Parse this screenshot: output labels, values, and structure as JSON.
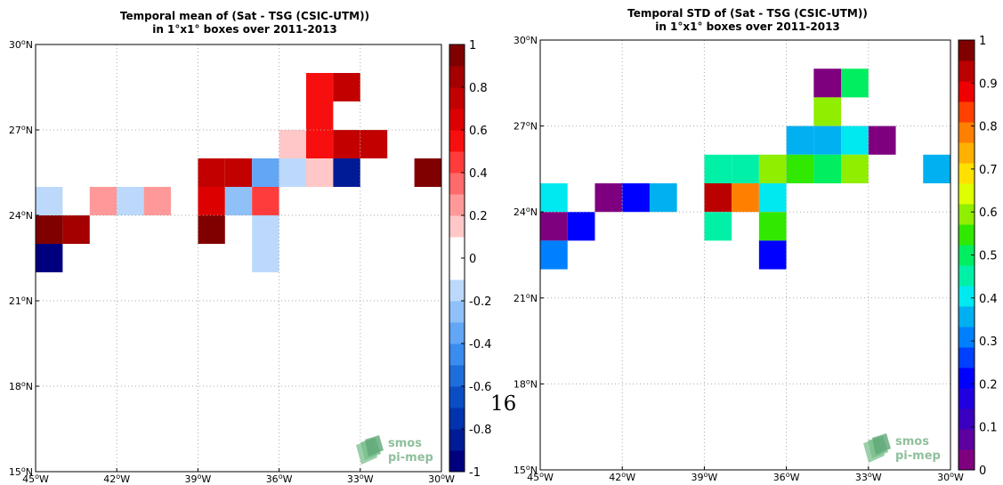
{
  "page_number": "16",
  "logo": {
    "line1": "smos",
    "line2": "pi-mep"
  },
  "chart_data": [
    {
      "type": "heatmap",
      "title_line1": "Temporal mean of (Sat - TSG (CSIC-UTM))",
      "title_line2": "in 1°x1° boxes over 2011-2013",
      "xlim": [
        -45,
        -30
      ],
      "ylim": [
        15,
        30
      ],
      "xticks": [
        {
          "value": -45,
          "label": "45°W"
        },
        {
          "value": -42,
          "label": "42°W"
        },
        {
          "value": -39,
          "label": "39°W"
        },
        {
          "value": -36,
          "label": "36°W"
        },
        {
          "value": -33,
          "label": "33°W"
        },
        {
          "value": -30,
          "label": "30°W"
        }
      ],
      "yticks": [
        {
          "value": 15,
          "label": "15°N"
        },
        {
          "value": 18,
          "label": "18°N"
        },
        {
          "value": 21,
          "label": "21°N"
        },
        {
          "value": 24,
          "label": "24°N"
        },
        {
          "value": 27,
          "label": "27°N"
        },
        {
          "value": 30,
          "label": "30°N"
        }
      ],
      "grid": true,
      "colorbar": {
        "min": -1,
        "max": 1,
        "colors": [
          "#00007f",
          "#001b96",
          "#0033ad",
          "#0b4ec4",
          "#1f6ddb",
          "#3a8cee",
          "#62a6f5",
          "#8fc0f8",
          "#bcd9fb",
          "#ffffff",
          "#ffffff",
          "#ffc7c7",
          "#ff9999",
          "#ff6a6a",
          "#ff3c3c",
          "#f70f0f",
          "#dd0000",
          "#c20000",
          "#a40000",
          "#800000"
        ],
        "ticks": [
          {
            "value": 1,
            "label": "1"
          },
          {
            "value": 0.8,
            "label": "0.8"
          },
          {
            "value": 0.6,
            "label": "0.6"
          },
          {
            "value": 0.4,
            "label": "0.4"
          },
          {
            "value": 0.2,
            "label": "0.2"
          },
          {
            "value": 0,
            "label": "0"
          },
          {
            "value": -0.2,
            "label": "-0.2"
          },
          {
            "value": -0.4,
            "label": "-0.4"
          },
          {
            "value": -0.6,
            "label": "-0.6"
          },
          {
            "value": -0.8,
            "label": "-0.8"
          },
          {
            "value": -1,
            "label": "-1"
          }
        ]
      },
      "cells": [
        {
          "lon": -35,
          "lat": 28,
          "value": 0.55
        },
        {
          "lon": -34,
          "lat": 28,
          "value": 0.7
        },
        {
          "lon": -35,
          "lat": 27,
          "value": 0.55
        },
        {
          "lon": -36,
          "lat": 26,
          "value": 0.15
        },
        {
          "lon": -35,
          "lat": 26,
          "value": 0.5
        },
        {
          "lon": -34,
          "lat": 26,
          "value": 0.7
        },
        {
          "lon": -33,
          "lat": 26,
          "value": 0.7
        },
        {
          "lon": -39,
          "lat": 25,
          "value": 0.75
        },
        {
          "lon": -38,
          "lat": 25,
          "value": 0.7
        },
        {
          "lon": -37,
          "lat": 25,
          "value": -0.35
        },
        {
          "lon": -36,
          "lat": 25,
          "value": -0.15
        },
        {
          "lon": -35,
          "lat": 25,
          "value": 0.15
        },
        {
          "lon": -34,
          "lat": 25,
          "value": -0.85
        },
        {
          "lon": -31,
          "lat": 25,
          "value": 0.95
        },
        {
          "lon": -45,
          "lat": 24,
          "value": -0.15
        },
        {
          "lon": -43,
          "lat": 24,
          "value": 0.25
        },
        {
          "lon": -42,
          "lat": 24,
          "value": -0.15
        },
        {
          "lon": -41,
          "lat": 24,
          "value": 0.25
        },
        {
          "lon": -39,
          "lat": 24,
          "value": 0.65
        },
        {
          "lon": -38,
          "lat": 24,
          "value": -0.25
        },
        {
          "lon": -37,
          "lat": 24,
          "value": 0.45
        },
        {
          "lon": -45,
          "lat": 23,
          "value": 0.95
        },
        {
          "lon": -44,
          "lat": 23,
          "value": 0.8
        },
        {
          "lon": -39,
          "lat": 23,
          "value": 0.95
        },
        {
          "lon": -37,
          "lat": 23,
          "value": -0.15
        },
        {
          "lon": -45,
          "lat": 22,
          "value": -0.95
        },
        {
          "lon": -37,
          "lat": 22,
          "value": -0.15
        }
      ]
    },
    {
      "type": "heatmap",
      "title_line1": "Temporal STD of (Sat - TSG (CSIC-UTM))",
      "title_line2": "in 1°x1° boxes over 2011-2013",
      "xlim": [
        -45,
        -30
      ],
      "ylim": [
        15,
        30
      ],
      "xticks": [
        {
          "value": -45,
          "label": "45°W"
        },
        {
          "value": -42,
          "label": "42°W"
        },
        {
          "value": -39,
          "label": "39°W"
        },
        {
          "value": -36,
          "label": "36°W"
        },
        {
          "value": -33,
          "label": "33°W"
        },
        {
          "value": -30,
          "label": "30°W"
        }
      ],
      "yticks": [
        {
          "value": 15,
          "label": "15°N"
        },
        {
          "value": 18,
          "label": "18°N"
        },
        {
          "value": 21,
          "label": "21°N"
        },
        {
          "value": 24,
          "label": "24°N"
        },
        {
          "value": 27,
          "label": "27°N"
        },
        {
          "value": 30,
          "label": "30°N"
        }
      ],
      "grid": true,
      "colorbar": {
        "min": 0,
        "max": 1,
        "colors": [
          "#7f007f",
          "#5c009f",
          "#3a00bf",
          "#1f00df",
          "#0000ff",
          "#0040ff",
          "#0080ff",
          "#00b0f0",
          "#00e8f0",
          "#00f0a8",
          "#00ee60",
          "#30e800",
          "#90ee00",
          "#ddff00",
          "#ffe000",
          "#ffb000",
          "#ff8000",
          "#ff4000",
          "#ee0000",
          "#bb0000",
          "#800000"
        ],
        "ticks": [
          {
            "value": 1,
            "label": "1"
          },
          {
            "value": 0.9,
            "label": "0.9"
          },
          {
            "value": 0.8,
            "label": "0.8"
          },
          {
            "value": 0.7,
            "label": "0.7"
          },
          {
            "value": 0.6,
            "label": "0.6"
          },
          {
            "value": 0.5,
            "label": "0.5"
          },
          {
            "value": 0.4,
            "label": "0.4"
          },
          {
            "value": 0.3,
            "label": "0.3"
          },
          {
            "value": 0.2,
            "label": "0.2"
          },
          {
            "value": 0.1,
            "label": "0.1"
          },
          {
            "value": 0,
            "label": "0"
          }
        ]
      },
      "cells": [
        {
          "lon": -35,
          "lat": 28,
          "value": 0.02
        },
        {
          "lon": -34,
          "lat": 28,
          "value": 0.52
        },
        {
          "lon": -35,
          "lat": 27,
          "value": 0.6
        },
        {
          "lon": -36,
          "lat": 26,
          "value": 0.35
        },
        {
          "lon": -35,
          "lat": 26,
          "value": 0.35
        },
        {
          "lon": -34,
          "lat": 26,
          "value": 0.4
        },
        {
          "lon": -33,
          "lat": 26,
          "value": 0.02
        },
        {
          "lon": -39,
          "lat": 25,
          "value": 0.45
        },
        {
          "lon": -38,
          "lat": 25,
          "value": 0.45
        },
        {
          "lon": -37,
          "lat": 25,
          "value": 0.58
        },
        {
          "lon": -36,
          "lat": 25,
          "value": 0.55
        },
        {
          "lon": -35,
          "lat": 25,
          "value": 0.52
        },
        {
          "lon": -34,
          "lat": 25,
          "value": 0.58
        },
        {
          "lon": -31,
          "lat": 25,
          "value": 0.35
        },
        {
          "lon": -45,
          "lat": 24,
          "value": 0.4
        },
        {
          "lon": -43,
          "lat": 24,
          "value": 0.02
        },
        {
          "lon": -42,
          "lat": 24,
          "value": 0.2
        },
        {
          "lon": -41,
          "lat": 24,
          "value": 0.35
        },
        {
          "lon": -39,
          "lat": 24,
          "value": 0.92
        },
        {
          "lon": -38,
          "lat": 24,
          "value": 0.78
        },
        {
          "lon": -37,
          "lat": 24,
          "value": 0.4
        },
        {
          "lon": -45,
          "lat": 23,
          "value": 0.02
        },
        {
          "lon": -44,
          "lat": 23,
          "value": 0.2
        },
        {
          "lon": -39,
          "lat": 23,
          "value": 0.45
        },
        {
          "lon": -37,
          "lat": 23,
          "value": 0.55
        },
        {
          "lon": -45,
          "lat": 22,
          "value": 0.3
        },
        {
          "lon": -37,
          "lat": 22,
          "value": 0.2
        }
      ]
    }
  ]
}
